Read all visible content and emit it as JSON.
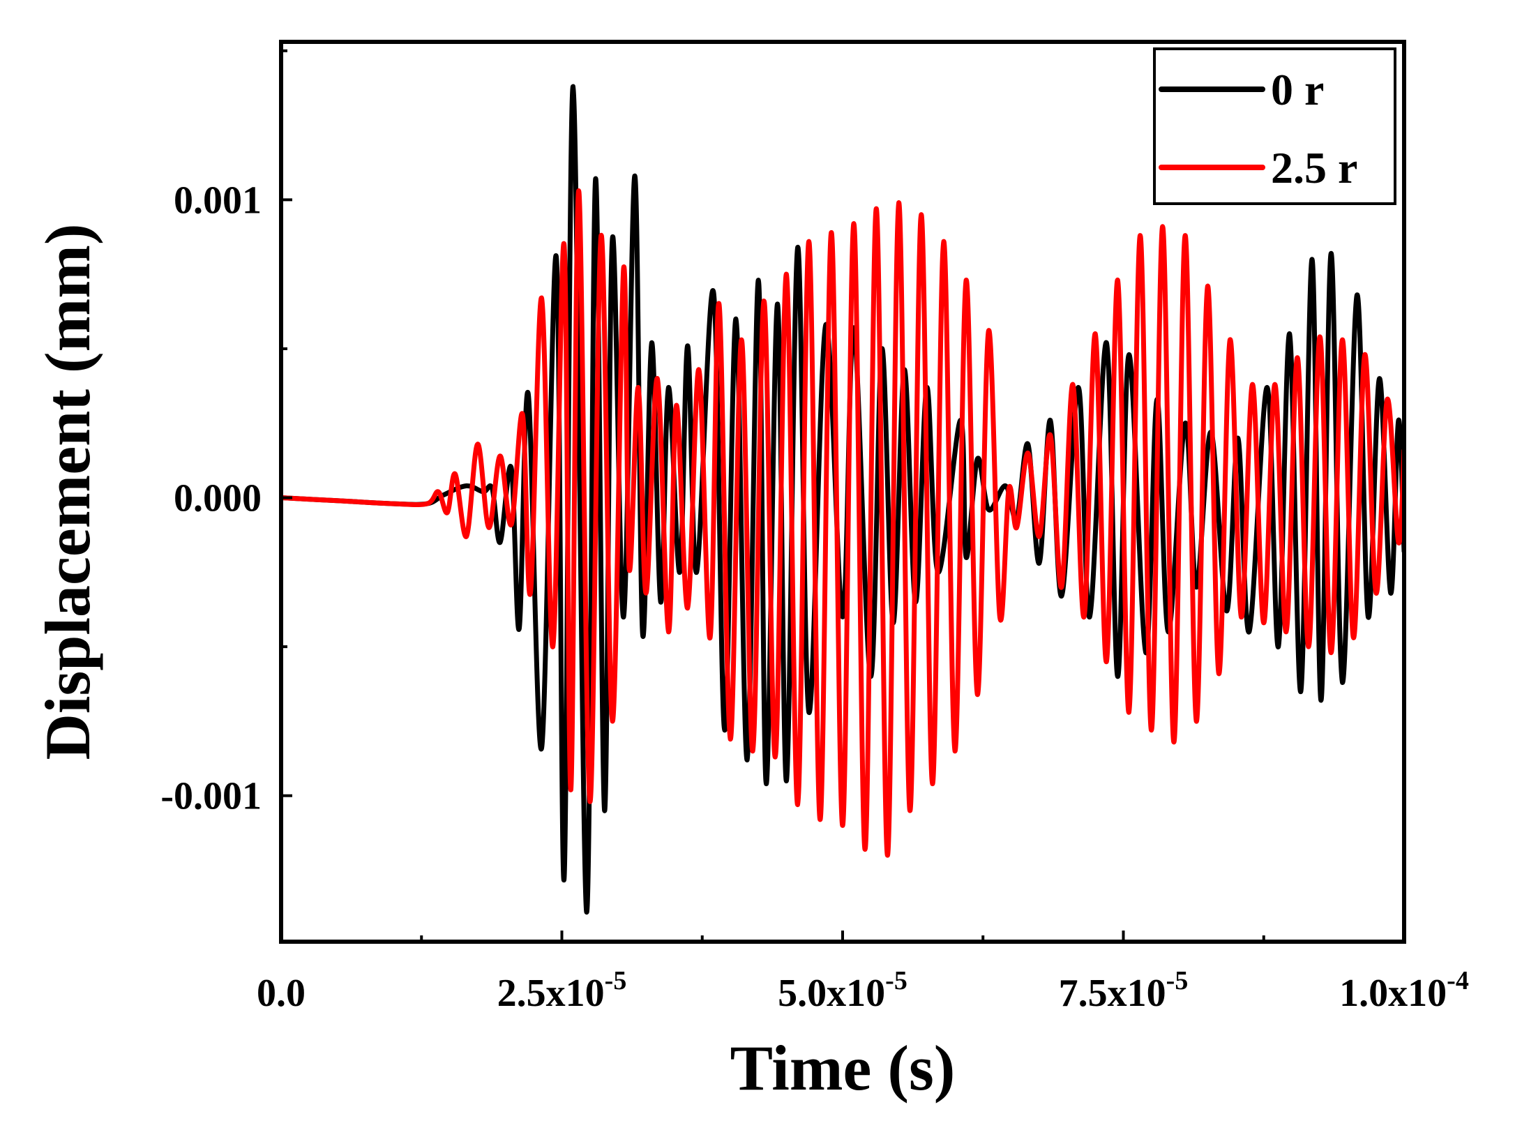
{
  "chart_data": {
    "type": "line",
    "xlabel": "Time (s)",
    "ylabel": "Displacement (mm)",
    "xlim": [
      0,
      0.0001
    ],
    "ylim": [
      -0.00149,
      0.00153
    ],
    "x_ticks": [
      {
        "value": 0,
        "label": "0.0",
        "sup": ""
      },
      {
        "value": 2.5e-05,
        "label": "2.5x10",
        "sup": "-5"
      },
      {
        "value": 5e-05,
        "label": "5.0x10",
        "sup": "-5"
      },
      {
        "value": 7.5e-05,
        "label": "7.5x10",
        "sup": "-5"
      },
      {
        "value": 0.0001,
        "label": "1.0x10",
        "sup": "-4"
      }
    ],
    "y_ticks": [
      {
        "value": -0.001,
        "label": "-0.001"
      },
      {
        "value": 0,
        "label": "0.000"
      },
      {
        "value": 0.001,
        "label": "0.001"
      }
    ],
    "legend_position": "top-right",
    "series": [
      {
        "name": "0 r",
        "color": "#000000",
        "points": [
          [
            0,
            0
          ],
          [
            5e-06,
            -1e-05
          ],
          [
            1e-05,
            -2e-05
          ],
          [
            1.3e-05,
            -2e-05
          ],
          [
            1.45e-05,
            1e-05
          ],
          [
            1.65e-05,
            4e-05
          ],
          [
            1.8e-05,
            2e-05
          ],
          [
            1.88e-05,
            3e-05
          ],
          [
            1.95e-05,
            -0.00015
          ],
          [
            2.05e-05,
            0.0001
          ],
          [
            2.12e-05,
            -0.00044
          ],
          [
            2.2e-05,
            0.00035
          ],
          [
            2.32e-05,
            -0.00084
          ],
          [
            2.45e-05,
            0.00081
          ],
          [
            2.52e-05,
            -0.00128
          ],
          [
            2.6e-05,
            0.00138
          ],
          [
            2.72e-05,
            -0.00139
          ],
          [
            2.8e-05,
            0.00107
          ],
          [
            2.88e-05,
            -0.00105
          ],
          [
            2.95e-05,
            0.00087
          ],
          [
            3.05e-05,
            -0.0004
          ],
          [
            3.15e-05,
            0.00108
          ],
          [
            3.22e-05,
            -0.00046
          ],
          [
            3.3e-05,
            0.00052
          ],
          [
            3.38e-05,
            -0.00035
          ],
          [
            3.45e-05,
            0.00037
          ],
          [
            3.55e-05,
            -0.00025
          ],
          [
            3.62e-05,
            0.00051
          ],
          [
            3.7e-05,
            -0.00025
          ],
          [
            3.85e-05,
            0.00069
          ],
          [
            3.95e-05,
            -0.00078
          ],
          [
            4.05e-05,
            0.0006
          ],
          [
            4.15e-05,
            -0.00088
          ],
          [
            4.25e-05,
            0.00073
          ],
          [
            4.32e-05,
            -0.00096
          ],
          [
            4.42e-05,
            0.00065
          ],
          [
            4.5e-05,
            -0.00095
          ],
          [
            4.6e-05,
            0.00084
          ],
          [
            4.7e-05,
            -0.00072
          ],
          [
            4.85e-05,
            0.00058
          ],
          [
            5e-05,
            -0.0004
          ],
          [
            5.1e-05,
            0.00057
          ],
          [
            5.25e-05,
            -0.0006
          ],
          [
            5.35e-05,
            0.0005
          ],
          [
            5.45e-05,
            -0.00042
          ],
          [
            5.55e-05,
            0.00043
          ],
          [
            5.65e-05,
            -0.00035
          ],
          [
            5.75e-05,
            0.00037
          ],
          [
            5.85e-05,
            -0.00025
          ],
          [
            6.05e-05,
            0.00026
          ],
          [
            6.1e-05,
            -0.0002
          ],
          [
            6.2e-05,
            0.00013
          ],
          [
            6.3e-05,
            -4e-05
          ],
          [
            6.45e-05,
            4e-05
          ],
          [
            6.55e-05,
            -7e-05
          ],
          [
            6.65e-05,
            0.00018
          ],
          [
            6.75e-05,
            -0.00022
          ],
          [
            6.85e-05,
            0.00026
          ],
          [
            6.95e-05,
            -0.00033
          ],
          [
            7.1e-05,
            0.00037
          ],
          [
            7.2e-05,
            -0.0004
          ],
          [
            7.35e-05,
            0.00052
          ],
          [
            7.45e-05,
            -0.0006
          ],
          [
            7.55e-05,
            0.00048
          ],
          [
            7.7e-05,
            -0.00052
          ],
          [
            7.8e-05,
            0.00033
          ],
          [
            7.9e-05,
            -0.00045
          ],
          [
            8.05e-05,
            0.00025
          ],
          [
            8.15e-05,
            -0.0003
          ],
          [
            8.28e-05,
            0.00022
          ],
          [
            8.42e-05,
            -0.00038
          ],
          [
            8.52e-05,
            0.0002
          ],
          [
            8.62e-05,
            -0.00045
          ],
          [
            8.78e-05,
            0.00037
          ],
          [
            8.88e-05,
            -0.0005
          ],
          [
            8.98e-05,
            0.00055
          ],
          [
            9.08e-05,
            -0.00065
          ],
          [
            9.18e-05,
            0.0008
          ],
          [
            9.26e-05,
            -0.00068
          ],
          [
            9.35e-05,
            0.00082
          ],
          [
            9.45e-05,
            -0.00062
          ],
          [
            9.58e-05,
            0.00068
          ],
          [
            9.68e-05,
            -0.0004
          ],
          [
            9.78e-05,
            0.0004
          ],
          [
            9.88e-05,
            -0.00032
          ],
          [
            9.95e-05,
            0.00026
          ],
          [
            0.0001,
            -0.00018
          ]
        ]
      },
      {
        "name": "2.5 r",
        "color": "#ff0000",
        "points": [
          [
            0,
            0
          ],
          [
            5e-06,
            -1e-05
          ],
          [
            1e-05,
            -2e-05
          ],
          [
            1.3e-05,
            -2e-05
          ],
          [
            1.4e-05,
            2e-05
          ],
          [
            1.48e-05,
            -5e-05
          ],
          [
            1.55e-05,
            8e-05
          ],
          [
            1.65e-05,
            -0.00013
          ],
          [
            1.75e-05,
            0.00018
          ],
          [
            1.85e-05,
            -0.0001
          ],
          [
            1.95e-05,
            0.00014
          ],
          [
            2.05e-05,
            -9e-05
          ],
          [
            2.15e-05,
            0.00028
          ],
          [
            2.22e-05,
            -0.00032
          ],
          [
            2.32e-05,
            0.00067
          ],
          [
            2.42e-05,
            -0.0005
          ],
          [
            2.52e-05,
            0.00085
          ],
          [
            2.58e-05,
            -0.00098
          ],
          [
            2.65e-05,
            0.00103
          ],
          [
            2.75e-05,
            -0.00102
          ],
          [
            2.85e-05,
            0.00088
          ],
          [
            2.95e-05,
            -0.00075
          ],
          [
            3.05e-05,
            0.00077
          ],
          [
            3.1e-05,
            -0.00024
          ],
          [
            3.18e-05,
            0.00037
          ],
          [
            3.25e-05,
            -0.00032
          ],
          [
            3.35e-05,
            0.0004
          ],
          [
            3.45e-05,
            -0.00045
          ],
          [
            3.52e-05,
            0.00031
          ],
          [
            3.62e-05,
            -0.00037
          ],
          [
            3.72e-05,
            0.00043
          ],
          [
            3.82e-05,
            -0.00047
          ],
          [
            3.9e-05,
            0.00065
          ],
          [
            4e-05,
            -0.00081
          ],
          [
            4.1e-05,
            0.00053
          ],
          [
            4.2e-05,
            -0.00085
          ],
          [
            4.3e-05,
            0.00066
          ],
          [
            4.4e-05,
            -0.00087
          ],
          [
            4.5e-05,
            0.00075
          ],
          [
            4.6e-05,
            -0.00103
          ],
          [
            4.7e-05,
            0.00086
          ],
          [
            4.8e-05,
            -0.00108
          ],
          [
            4.9e-05,
            0.00089
          ],
          [
            5e-05,
            -0.0011
          ],
          [
            5.1e-05,
            0.00092
          ],
          [
            5.2e-05,
            -0.00118
          ],
          [
            5.3e-05,
            0.00097
          ],
          [
            5.4e-05,
            -0.0012
          ],
          [
            5.5e-05,
            0.00099
          ],
          [
            5.6e-05,
            -0.00105
          ],
          [
            5.7e-05,
            0.00095
          ],
          [
            5.8e-05,
            -0.00096
          ],
          [
            5.9e-05,
            0.00086
          ],
          [
            6e-05,
            -0.00085
          ],
          [
            6.1e-05,
            0.00073
          ],
          [
            6.2e-05,
            -0.00066
          ],
          [
            6.3e-05,
            0.00056
          ],
          [
            6.4e-05,
            -0.0004
          ],
          [
            6.48e-05,
            3e-05
          ],
          [
            6.55e-05,
            -0.0001
          ],
          [
            6.65e-05,
            0.00015
          ],
          [
            6.75e-05,
            -0.00013
          ],
          [
            6.85e-05,
            0.00021
          ],
          [
            6.95e-05,
            -0.0003
          ],
          [
            7.05e-05,
            0.00038
          ],
          [
            7.15e-05,
            -0.0004
          ],
          [
            7.25e-05,
            0.00055
          ],
          [
            7.35e-05,
            -0.00055
          ],
          [
            7.45e-05,
            0.00073
          ],
          [
            7.55e-05,
            -0.00072
          ],
          [
            7.65e-05,
            0.00088
          ],
          [
            7.75e-05,
            -0.00078
          ],
          [
            7.85e-05,
            0.00091
          ],
          [
            7.95e-05,
            -0.00082
          ],
          [
            8.05e-05,
            0.00088
          ],
          [
            8.15e-05,
            -0.00075
          ],
          [
            8.25e-05,
            0.00071
          ],
          [
            8.35e-05,
            -0.00059
          ],
          [
            8.45e-05,
            0.00053
          ],
          [
            8.55e-05,
            -0.0004
          ],
          [
            8.65e-05,
            0.00038
          ],
          [
            8.75e-05,
            -0.00042
          ],
          [
            8.85e-05,
            0.00038
          ],
          [
            8.95e-05,
            -0.00045
          ],
          [
            9.05e-05,
            0.00047
          ],
          [
            9.15e-05,
            -0.0005
          ],
          [
            9.25e-05,
            0.00054
          ],
          [
            9.35e-05,
            -0.00052
          ],
          [
            9.45e-05,
            0.00053
          ],
          [
            9.55e-05,
            -0.00047
          ],
          [
            9.65e-05,
            0.00048
          ],
          [
            9.75e-05,
            -0.00032
          ],
          [
            9.85e-05,
            0.00033
          ],
          [
            9.95e-05,
            -0.00015
          ],
          [
            0.0001,
            0.00016
          ]
        ]
      }
    ]
  }
}
